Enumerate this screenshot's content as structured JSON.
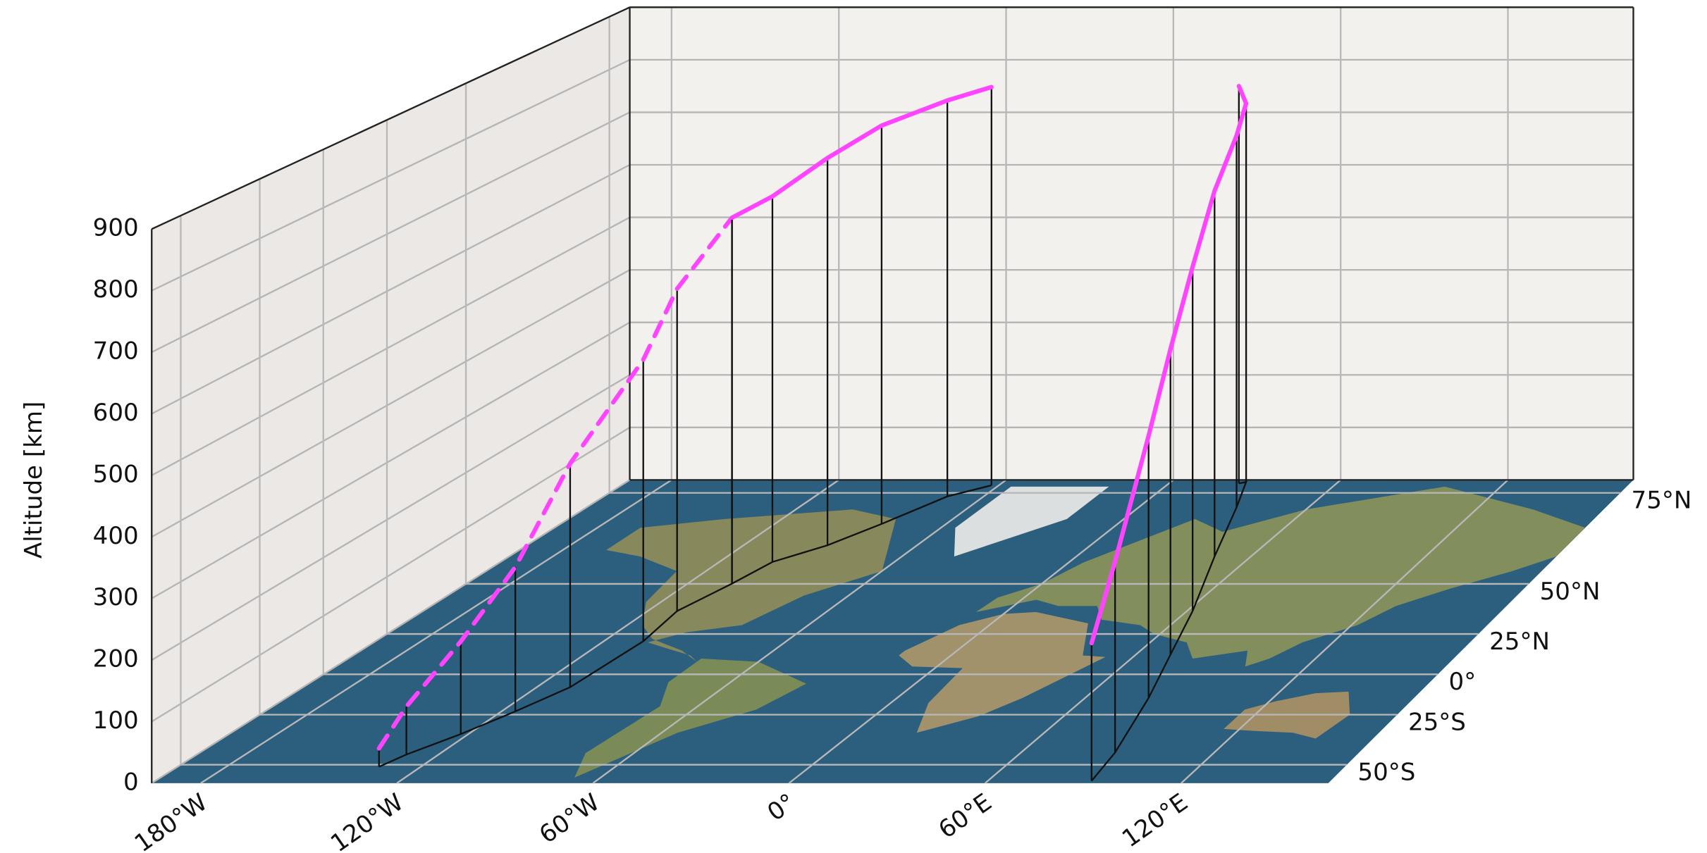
{
  "chart_data": {
    "type": "trajectory3d",
    "zlabel": "Altitude [km]",
    "xlim": [
      -195,
      165
    ],
    "xticks": [
      {
        "value": -180,
        "label": "180°W"
      },
      {
        "value": -120,
        "label": "120°W"
      },
      {
        "value": -60,
        "label": "60°W"
      },
      {
        "value": 0,
        "label": "0°"
      },
      {
        "value": 60,
        "label": "60°E"
      },
      {
        "value": 120,
        "label": "120°E"
      }
    ],
    "ylim": [
      -57,
      77
    ],
    "yscale": "mercator",
    "yticks": [
      {
        "value": -50,
        "label": "50°S"
      },
      {
        "value": -25,
        "label": "25°S"
      },
      {
        "value": 0,
        "label": "0°"
      },
      {
        "value": 25,
        "label": "25°N"
      },
      {
        "value": 50,
        "label": "50°N"
      },
      {
        "value": 75,
        "label": "75°N"
      }
    ],
    "zlim": [
      0,
      900
    ],
    "zticks": [
      0,
      100,
      200,
      300,
      400,
      500,
      600,
      700,
      800,
      900
    ],
    "grid": true,
    "series": [
      {
        "color": "#ff44ff",
        "dash": true,
        "lon": [
          -132.9,
          -130,
          -122.4,
          -115.6,
          -109.3,
          -107,
          -110.2,
          -105
        ],
        "lat": [
          -50.8,
          -45.6,
          -35.7,
          -23.1,
          -8.2,
          20.7,
          37.5,
          50.1
        ],
        "alt": [
          30,
          79,
          154,
          243,
          381,
          491,
          571,
          658
        ]
      },
      {
        "color": "#ff44ff",
        "dash": false,
        "lon": [
          -105,
          -101.8,
          -91,
          -82.6,
          -72.9,
          -62.6
        ],
        "lat": [
          50.1,
          58.2,
          63.4,
          68.9,
          74.4,
          76.2
        ],
        "alt": [
          658,
          665,
          711,
          740,
          747,
          756
        ]
      },
      {
        "color": "#ff44ff",
        "dash": false,
        "lon": [
          91.8,
          89.2,
          80.3,
          71.3,
          61.9,
          47.5,
          34.6,
          27,
          25
        ],
        "lat": [
          -56.2,
          -44.7,
          -15,
          12.5,
          37.5,
          60,
          72.4,
          76.7,
          76.5
        ],
        "alt": [
          224,
          315,
          444,
          529,
          610,
          667,
          697,
          720,
          755
        ]
      }
    ]
  }
}
